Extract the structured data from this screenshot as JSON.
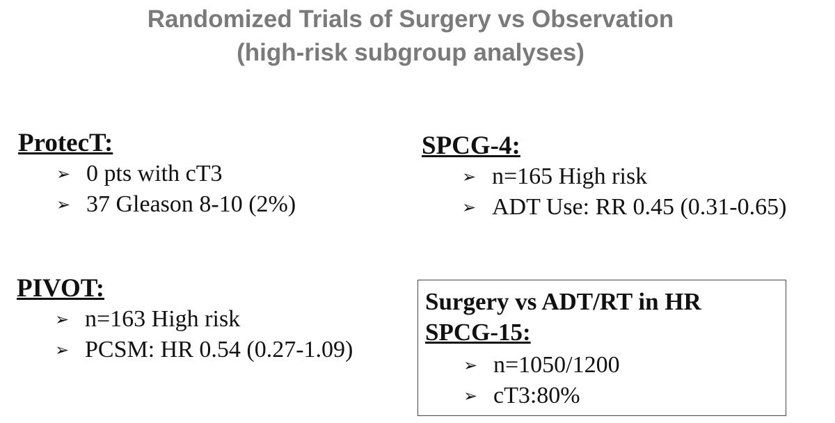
{
  "title": {
    "line1": "Randomized Trials of Surgery vs Observation",
    "line2": "(high-risk subgroup analyses)"
  },
  "bullet_icon": "arrowhead-bullet-icon",
  "sections": {
    "protect": {
      "heading": "ProtecT:",
      "items": [
        "0 pts with cT3",
        "37 Gleason 8-10 (2%)"
      ]
    },
    "spcg4": {
      "heading": "SPCG-4:",
      "items": [
        "n=165 High risk",
        "ADT Use: RR 0.45 (0.31-0.65)"
      ]
    },
    "pivot": {
      "heading": "PIVOT:",
      "items": [
        "n=163 High risk",
        "PCSM: HR 0.54 (0.27-1.09)"
      ]
    },
    "spcg15": {
      "title": "Surgery vs ADT/RT in HR",
      "heading": "SPCG-15:",
      "items": [
        "n=1050/1200",
        "cT3:80%"
      ]
    }
  },
  "colors": {
    "title": "#7a7a7a",
    "text": "#111111",
    "box_border": "#444444"
  }
}
